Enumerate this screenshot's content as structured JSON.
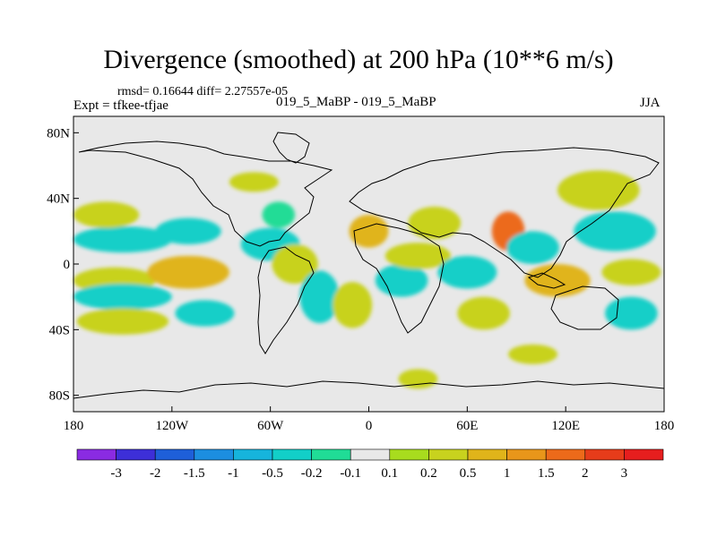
{
  "chart_data": {
    "type": "heatmap",
    "title": "Divergence (smoothed) at 200 hPa (10**6 m/s)",
    "stats_text": "rmsd= 0.16644 diff= 2.27557e-05",
    "left_label": "Expt = tfkee-tfjae",
    "center_label": "019_5_MaBP - 019_5_MaBP",
    "right_label": "JJA",
    "x_ticks": [
      {
        "value": -180,
        "label": "180"
      },
      {
        "value": -120,
        "label": "120W"
      },
      {
        "value": -60,
        "label": "60W"
      },
      {
        "value": 0,
        "label": "0"
      },
      {
        "value": 60,
        "label": "60E"
      },
      {
        "value": 120,
        "label": "120E"
      },
      {
        "value": 180,
        "label": "180"
      }
    ],
    "y_ticks": [
      {
        "value": 80,
        "label": "80N"
      },
      {
        "value": 40,
        "label": "40N"
      },
      {
        "value": 0,
        "label": "0"
      },
      {
        "value": -40,
        "label": "40S"
      },
      {
        "value": -80,
        "label": "80S"
      }
    ],
    "xlim": [
      -180,
      180
    ],
    "ylim": [
      -90,
      90
    ],
    "colorbar": {
      "levels": [
        "-3",
        "-2",
        "-1.5",
        "-1",
        "-0.5",
        "-0.2",
        "-0.1",
        "0.1",
        "0.2",
        "0.5",
        "1",
        "1.5",
        "2",
        "3"
      ],
      "colors": [
        "#8a2be2",
        "#3d2fd8",
        "#1e5fd9",
        "#1c8ee0",
        "#16b4dc",
        "#12cfc8",
        "#20dc96",
        "#e8e8e8",
        "#a8dc1e",
        "#c8d21e",
        "#e0b41a",
        "#e8961a",
        "#ec6a1a",
        "#e63c1a",
        "#e61e1e"
      ]
    },
    "blobs": [
      {
        "lon": -150,
        "lat": 15,
        "rx": 30,
        "ry": 4,
        "level": 5
      },
      {
        "lon": -160,
        "lat": 30,
        "rx": 20,
        "ry": 4,
        "level": 9
      },
      {
        "lon": -155,
        "lat": -10,
        "rx": 25,
        "ry": 4,
        "level": 9
      },
      {
        "lon": -150,
        "lat": -20,
        "rx": 30,
        "ry": 4,
        "level": 5
      },
      {
        "lon": -150,
        "lat": -35,
        "rx": 28,
        "ry": 4,
        "level": 9
      },
      {
        "lon": -110,
        "lat": 20,
        "rx": 20,
        "ry": 4,
        "level": 5
      },
      {
        "lon": -110,
        "lat": -5,
        "rx": 25,
        "ry": 5,
        "level": 10
      },
      {
        "lon": -100,
        "lat": -30,
        "rx": 18,
        "ry": 4,
        "level": 5
      },
      {
        "lon": -60,
        "lat": 12,
        "rx": 18,
        "ry": 5,
        "level": 5
      },
      {
        "lon": -45,
        "lat": 0,
        "rx": 14,
        "ry": 6,
        "level": 9
      },
      {
        "lon": -30,
        "lat": -20,
        "rx": 12,
        "ry": 8,
        "level": 5
      },
      {
        "lon": -10,
        "lat": -25,
        "rx": 12,
        "ry": 7,
        "level": 9
      },
      {
        "lon": 0,
        "lat": 20,
        "rx": 12,
        "ry": 5,
        "level": 10
      },
      {
        "lon": 20,
        "lat": -10,
        "rx": 16,
        "ry": 5,
        "level": 5
      },
      {
        "lon": 30,
        "lat": 5,
        "rx": 20,
        "ry": 4,
        "level": 9
      },
      {
        "lon": 40,
        "lat": 25,
        "rx": 16,
        "ry": 5,
        "level": 9
      },
      {
        "lon": 60,
        "lat": -5,
        "rx": 18,
        "ry": 5,
        "level": 5
      },
      {
        "lon": 70,
        "lat": -30,
        "rx": 16,
        "ry": 5,
        "level": 9
      },
      {
        "lon": 85,
        "lat": 20,
        "rx": 10,
        "ry": 6,
        "level": 12
      },
      {
        "lon": 100,
        "lat": 10,
        "rx": 16,
        "ry": 5,
        "level": 5
      },
      {
        "lon": 115,
        "lat": -10,
        "rx": 20,
        "ry": 5,
        "level": 10
      },
      {
        "lon": 140,
        "lat": 45,
        "rx": 25,
        "ry": 6,
        "level": 9
      },
      {
        "lon": 150,
        "lat": 20,
        "rx": 25,
        "ry": 6,
        "level": 5
      },
      {
        "lon": 160,
        "lat": -5,
        "rx": 18,
        "ry": 4,
        "level": 9
      },
      {
        "lon": 160,
        "lat": -30,
        "rx": 16,
        "ry": 5,
        "level": 5
      },
      {
        "lon": 100,
        "lat": -55,
        "rx": 15,
        "ry": 3,
        "level": 9
      },
      {
        "lon": 30,
        "lat": -70,
        "rx": 12,
        "ry": 3,
        "level": 9
      },
      {
        "lon": -55,
        "lat": 30,
        "rx": 10,
        "ry": 4,
        "level": 6
      },
      {
        "lon": -70,
        "lat": 50,
        "rx": 15,
        "ry": 3,
        "level": 9
      }
    ]
  }
}
